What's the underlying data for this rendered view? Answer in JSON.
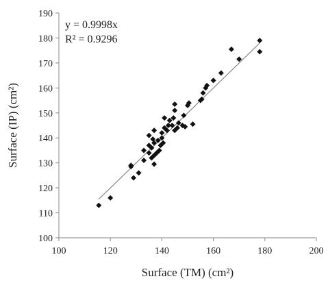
{
  "chart_data": {
    "type": "scatter",
    "title": "",
    "xlabel": "Surface (TM) (cm²)",
    "ylabel": "Surface (IP) (cm²)",
    "xlim": [
      100,
      200
    ],
    "ylim": [
      100,
      190
    ],
    "xticks": [
      "100",
      "120",
      "140",
      "160",
      "180",
      "200"
    ],
    "yticks": [
      "100",
      "110",
      "120",
      "130",
      "140",
      "150",
      "160",
      "170",
      "180",
      "190"
    ],
    "grid": false,
    "legend": "none",
    "marker": "diamond",
    "marker_color": "#111111",
    "annotations": {
      "equation": "y = 0.9998x",
      "r_squared": "R² = 0.9296"
    },
    "trendline": {
      "slope": 0.9998,
      "x_range": [
        115.5,
        178
      ],
      "color": "#888888"
    },
    "points": [
      [
        115.5,
        113
      ],
      [
        120,
        116
      ],
      [
        128,
        128.5
      ],
      [
        128,
        129
      ],
      [
        129,
        124
      ],
      [
        131,
        126
      ],
      [
        133,
        131
      ],
      [
        133,
        135
      ],
      [
        135,
        134
      ],
      [
        135,
        137
      ],
      [
        135,
        141
      ],
      [
        136,
        132
      ],
      [
        136,
        136
      ],
      [
        136.5,
        139.5
      ],
      [
        137,
        129.5
      ],
      [
        137,
        133
      ],
      [
        137,
        138
      ],
      [
        137,
        143
      ],
      [
        138,
        134
      ],
      [
        138.5,
        139
      ],
      [
        139,
        135
      ],
      [
        139.5,
        137
      ],
      [
        140,
        140
      ],
      [
        140,
        142
      ],
      [
        140.5,
        138
      ],
      [
        141,
        144
      ],
      [
        141,
        148
      ],
      [
        142,
        143
      ],
      [
        142.5,
        145
      ],
      [
        143,
        147
      ],
      [
        144,
        145
      ],
      [
        144.5,
        148
      ],
      [
        145,
        143
      ],
      [
        145,
        151
      ],
      [
        145,
        153.5
      ],
      [
        146,
        144
      ],
      [
        146.5,
        146
      ],
      [
        148,
        145
      ],
      [
        148.5,
        149
      ],
      [
        149,
        144.5
      ],
      [
        150,
        153
      ],
      [
        150.5,
        154
      ],
      [
        152,
        145.5
      ],
      [
        155,
        155
      ],
      [
        155.5,
        155.5
      ],
      [
        156,
        158
      ],
      [
        157,
        160
      ],
      [
        157.5,
        161
      ],
      [
        160,
        163
      ],
      [
        163,
        166
      ],
      [
        167,
        175.5
      ],
      [
        170,
        171.5
      ],
      [
        178,
        174.5
      ],
      [
        178,
        179
      ]
    ]
  }
}
